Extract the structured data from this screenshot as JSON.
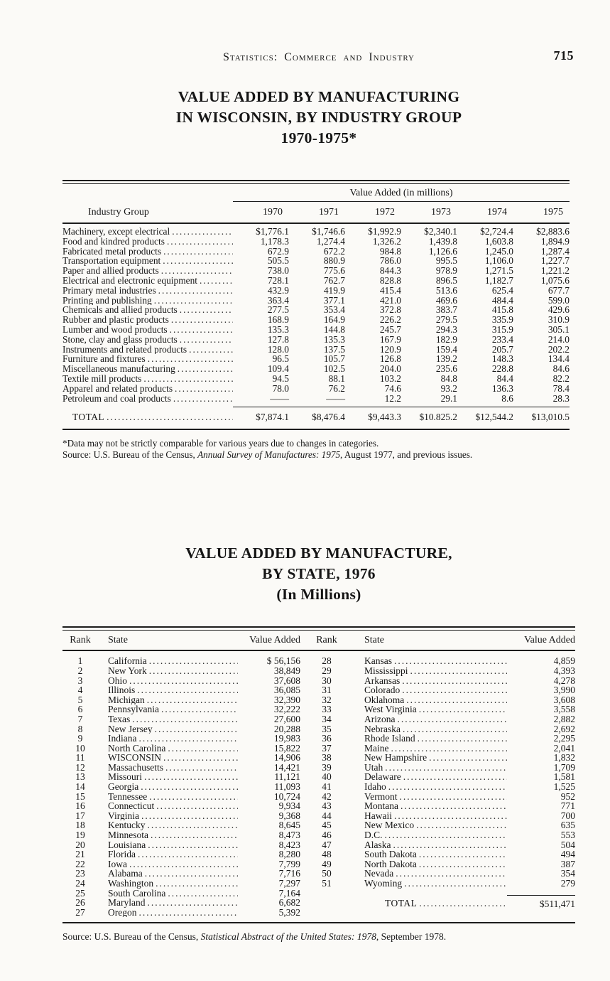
{
  "page": {
    "running_head": "Statistics:  Commerce and Industry",
    "page_number": "715"
  },
  "table1": {
    "title_line1": "VALUE ADDED BY MANUFACTURING",
    "title_line2": "IN WISCONSIN, BY INDUSTRY GROUP",
    "title_line3": "1970-1975*",
    "span_header": "Value Added (in millions)",
    "row_header": "Industry Group",
    "years": [
      "1970",
      "1971",
      "1972",
      "1973",
      "1974",
      "1975"
    ],
    "rows": [
      {
        "label": "Machinery, except electrical",
        "values": [
          "$1,776.1",
          "$1,746.6",
          "$1,992.9",
          "$2,340.1",
          "$2,724.4",
          "$2,883.6"
        ]
      },
      {
        "label": "Food and kindred products",
        "values": [
          "1,178.3",
          "1,274.4",
          "1,326.2",
          "1,439.8",
          "1,603.8",
          "1,894.9"
        ]
      },
      {
        "label": "Fabricated metal products",
        "values": [
          "672.9",
          "672.2",
          "984.8",
          "1,126.6",
          "1,245.0",
          "1,287.4"
        ]
      },
      {
        "label": "Transportation equipment",
        "values": [
          "505.5",
          "880.9",
          "786.0",
          "995.5",
          "1,106.0",
          "1,227.7"
        ]
      },
      {
        "label": "Paper and allied products",
        "values": [
          "738.0",
          "775.6",
          "844.3",
          "978.9",
          "1,271.5",
          "1,221.2"
        ]
      },
      {
        "label": "Electrical and electronic equipment",
        "values": [
          "728.1",
          "762.7",
          "828.8",
          "896.5",
          "1,182.7",
          "1,075.6"
        ]
      },
      {
        "label": "Primary metal industries",
        "values": [
          "432.9",
          "419.9",
          "415.4",
          "513.6",
          "625.4",
          "677.7"
        ]
      },
      {
        "label": "Printing and publishing",
        "values": [
          "363.4",
          "377.1",
          "421.0",
          "469.6",
          "484.4",
          "599.0"
        ]
      },
      {
        "label": "Chemicals and allied products",
        "values": [
          "277.5",
          "353.4",
          "372.8",
          "383.7",
          "415.8",
          "429.6"
        ]
      },
      {
        "label": "Rubber and plastic products",
        "values": [
          "168.9",
          "164.9",
          "226.2",
          "279.5",
          "335.9",
          "310.9"
        ]
      },
      {
        "label": "Lumber and wood products",
        "values": [
          "135.3",
          "144.8",
          "245.7",
          "294.3",
          "315.9",
          "305.1"
        ]
      },
      {
        "label": "Stone, clay and glass products",
        "values": [
          "127.8",
          "135.3",
          "167.9",
          "182.9",
          "233.4",
          "214.0"
        ]
      },
      {
        "label": "Instruments and related products",
        "values": [
          "128.0",
          "137.5",
          "120.9",
          "159.4",
          "205.7",
          "202.2"
        ]
      },
      {
        "label": "Furniture and fixtures",
        "values": [
          "96.5",
          "105.7",
          "126.8",
          "139.2",
          "148.3",
          "134.4"
        ]
      },
      {
        "label": "Miscellaneous manufacturing",
        "values": [
          "109.4",
          "102.5",
          "204.0",
          "235.6",
          "228.8",
          "84.6"
        ]
      },
      {
        "label": "Textile mill products",
        "values": [
          "94.5",
          "88.1",
          "103.2",
          "84.8",
          "84.4",
          "82.2"
        ]
      },
      {
        "label": "Apparel and related products",
        "values": [
          "78.0",
          "76.2",
          "74.6",
          "93.2",
          "136.3",
          "78.4"
        ]
      },
      {
        "label": "Petroleum and coal products",
        "values": [
          "——",
          "——",
          "12.2",
          "29.1",
          "8.6",
          "28.3"
        ]
      }
    ],
    "total_label": "TOTAL",
    "total_values": [
      "$7,874.1",
      "$8,476.4",
      "$9,443.3",
      "$10.825.2",
      "$12,544.2",
      "$13,010.5"
    ],
    "footnote": "*Data may not be strictly comparable for various years due to changes in categories.",
    "source_prefix": "Source:  U.S. Bureau of the Census, ",
    "source_italic": "Annual Survey of Manufactures:  1975",
    "source_suffix": ", August 1977, and previous issues."
  },
  "table2": {
    "title_line1": "VALUE ADDED BY MANUFACTURE,",
    "title_line2": "BY STATE, 1976",
    "title_line3": "(In Millions)",
    "headers": {
      "rank": "Rank",
      "state": "State",
      "value": "Value Added"
    },
    "left_rows": [
      {
        "rank": "1",
        "state": "California",
        "value": "$ 56,156"
      },
      {
        "rank": "2",
        "state": "New York",
        "value": "38,849"
      },
      {
        "rank": "3",
        "state": "Ohio",
        "value": "37,608"
      },
      {
        "rank": "4",
        "state": "Illinois",
        "value": "36,085"
      },
      {
        "rank": "5",
        "state": "Michigan",
        "value": "32,390"
      },
      {
        "rank": "6",
        "state": "Pennsylvania",
        "value": "32,222"
      },
      {
        "rank": "7",
        "state": "Texas",
        "value": "27,600"
      },
      {
        "rank": "8",
        "state": "New Jersey",
        "value": "20,288"
      },
      {
        "rank": "9",
        "state": "Indiana",
        "value": "19,983"
      },
      {
        "rank": "10",
        "state": "North Carolina",
        "value": "15,822"
      },
      {
        "rank": "11",
        "state": "WISCONSIN",
        "value": "14,906"
      },
      {
        "rank": "12",
        "state": "Massachusetts",
        "value": "14,421"
      },
      {
        "rank": "13",
        "state": "Missouri",
        "value": "11,121"
      },
      {
        "rank": "14",
        "state": "Georgia",
        "value": "11,093"
      },
      {
        "rank": "15",
        "state": "Tennessee",
        "value": "10,724"
      },
      {
        "rank": "16",
        "state": "Connecticut",
        "value": "9,934"
      },
      {
        "rank": "17",
        "state": "Virginia",
        "value": "9,368"
      },
      {
        "rank": "18",
        "state": "Kentucky",
        "value": "8,645"
      },
      {
        "rank": "19",
        "state": "Minnesota",
        "value": "8,473"
      },
      {
        "rank": "20",
        "state": "Louisiana",
        "value": "8,423"
      },
      {
        "rank": "21",
        "state": "Florida",
        "value": "8,280"
      },
      {
        "rank": "22",
        "state": "Iowa",
        "value": "7,799"
      },
      {
        "rank": "23",
        "state": "Alabama",
        "value": "7,716"
      },
      {
        "rank": "24",
        "state": "Washington",
        "value": "7,297"
      },
      {
        "rank": "25",
        "state": "South Carolina",
        "value": "7,164"
      },
      {
        "rank": "26",
        "state": "Maryland",
        "value": "6,682"
      },
      {
        "rank": "27",
        "state": "Oregon",
        "value": "5,392"
      }
    ],
    "right_rows": [
      {
        "rank": "28",
        "state": "Kansas",
        "value": "4,859"
      },
      {
        "rank": "29",
        "state": "Mississippi",
        "value": "4,393"
      },
      {
        "rank": "30",
        "state": "Arkansas",
        "value": "4,278"
      },
      {
        "rank": "31",
        "state": "Colorado",
        "value": "3,990"
      },
      {
        "rank": "32",
        "state": "Oklahoma",
        "value": "3,608"
      },
      {
        "rank": "33",
        "state": "West Virginia",
        "value": "3,558"
      },
      {
        "rank": "34",
        "state": "Arizona",
        "value": "2,882"
      },
      {
        "rank": "35",
        "state": "Nebraska",
        "value": "2,692"
      },
      {
        "rank": "36",
        "state": "Rhode Island",
        "value": "2,295"
      },
      {
        "rank": "37",
        "state": "Maine",
        "value": "2,041"
      },
      {
        "rank": "38",
        "state": "New Hampshire",
        "value": "1,832"
      },
      {
        "rank": "39",
        "state": "Utah",
        "value": "1,709"
      },
      {
        "rank": "40",
        "state": "Delaware",
        "value": "1,581"
      },
      {
        "rank": "41",
        "state": "Idaho",
        "value": "1,525"
      },
      {
        "rank": "42",
        "state": "Vermont",
        "value": "952"
      },
      {
        "rank": "43",
        "state": "Montana",
        "value": "771"
      },
      {
        "rank": "44",
        "state": "Hawaii",
        "value": "700"
      },
      {
        "rank": "45",
        "state": "New Mexico",
        "value": "635"
      },
      {
        "rank": "46",
        "state": "D.C.",
        "value": "553"
      },
      {
        "rank": "47",
        "state": "Alaska",
        "value": "504"
      },
      {
        "rank": "48",
        "state": "South Dakota",
        "value": "494"
      },
      {
        "rank": "49",
        "state": "North Dakota",
        "value": "387"
      },
      {
        "rank": "50",
        "state": "Nevada",
        "value": "354"
      },
      {
        "rank": "51",
        "state": "Wyoming",
        "value": "279"
      }
    ],
    "total_label": "TOTAL",
    "total_value": "$511,471",
    "source_prefix": "Source: U.S. Bureau of the Census, ",
    "source_italic": "Statistical Abstract of the United States: 1978",
    "source_suffix": ", September 1978."
  }
}
